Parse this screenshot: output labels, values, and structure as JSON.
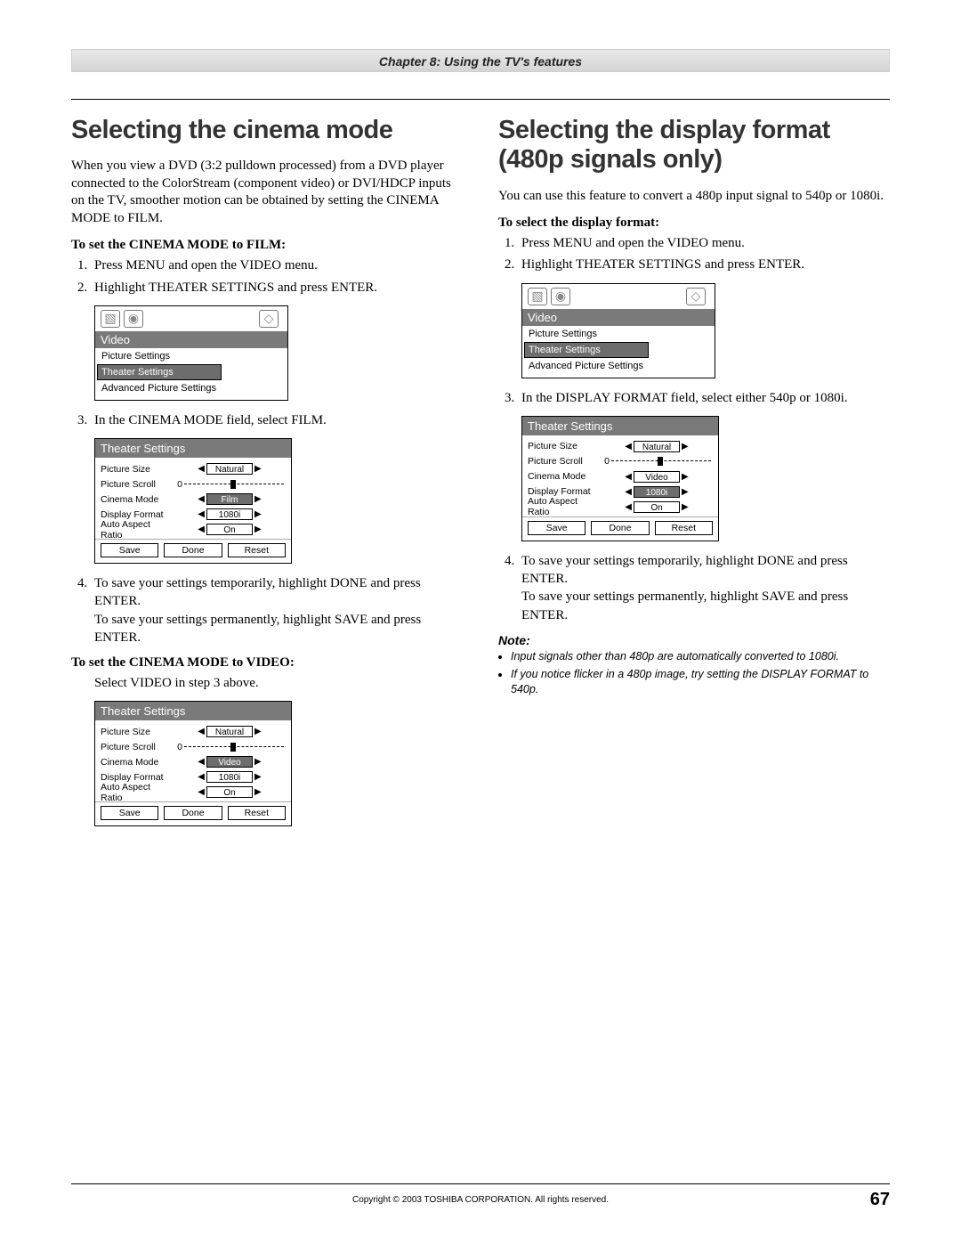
{
  "chapter_bar": "Chapter 8: Using the TV's features",
  "left": {
    "title": "Selecting the cinema mode",
    "intro": "When you view a DVD (3:2 pulldown processed) from a DVD player connected to the ColorStream (component video) or DVI/HDCP inputs on the TV, smoother motion can be obtained by setting the CINEMA MODE to FILM.",
    "lead1": "To set the CINEMA MODE to FILM:",
    "step1": "Press MENU and open the VIDEO menu.",
    "step2": "Highlight THEATER SETTINGS and press ENTER.",
    "video_menu": {
      "title": "Video",
      "items": [
        "Picture Settings",
        "Theater Settings",
        "Advanced Picture Settings"
      ],
      "selected_index": 1
    },
    "step3": "In the CINEMA MODE field, select FILM.",
    "theater1": {
      "title": "Theater Settings",
      "rows": [
        {
          "label": "Picture Size",
          "type": "val",
          "value": "Natural",
          "sel": false
        },
        {
          "label": "Picture Scroll",
          "type": "slider",
          "zero": "0"
        },
        {
          "label": "Cinema Mode",
          "type": "val",
          "value": "Film",
          "sel": true
        },
        {
          "label": "Display Format",
          "type": "val",
          "value": "1080i",
          "sel": false
        },
        {
          "label": "Auto Aspect Ratio",
          "type": "val",
          "value": "On",
          "sel": false
        }
      ],
      "buttons": [
        "Save",
        "Done",
        "Reset"
      ]
    },
    "step4a": "To save your settings temporarily, highlight DONE and press ENTER.",
    "step4b": "To save your settings permanently, highlight SAVE and press ENTER.",
    "lead2": "To set the CINEMA MODE to VIDEO:",
    "lead2_body": "Select VIDEO in step 3 above.",
    "theater2": {
      "title": "Theater Settings",
      "rows": [
        {
          "label": "Picture Size",
          "type": "val",
          "value": "Natural",
          "sel": false
        },
        {
          "label": "Picture Scroll",
          "type": "slider",
          "zero": "0"
        },
        {
          "label": "Cinema Mode",
          "type": "val",
          "value": "Video",
          "sel": true
        },
        {
          "label": "Display Format",
          "type": "val",
          "value": "1080i",
          "sel": false
        },
        {
          "label": "Auto Aspect Ratio",
          "type": "val",
          "value": "On",
          "sel": false
        }
      ],
      "buttons": [
        "Save",
        "Done",
        "Reset"
      ]
    }
  },
  "right": {
    "title": "Selecting the display format (480p signals only)",
    "intro": "You can use this feature to convert a 480p input signal to 540p or 1080i.",
    "lead1": "To select the display format:",
    "step1": "Press MENU and open the VIDEO menu.",
    "step2": "Highlight THEATER SETTINGS and press ENTER.",
    "video_menu": {
      "title": "Video",
      "items": [
        "Picture Settings",
        "Theater Settings",
        "Advanced Picture Settings"
      ],
      "selected_index": 1
    },
    "step3": "In the DISPLAY FORMAT field, select either 540p or 1080i.",
    "theater1": {
      "title": "Theater Settings",
      "rows": [
        {
          "label": "Picture Size",
          "type": "val",
          "value": "Natural",
          "sel": false
        },
        {
          "label": "Picture Scroll",
          "type": "slider",
          "zero": "0"
        },
        {
          "label": "Cinema Mode",
          "type": "val",
          "value": "Video",
          "sel": false
        },
        {
          "label": "Display Format",
          "type": "val",
          "value": "1080i",
          "sel": true
        },
        {
          "label": "Auto Aspect Ratio",
          "type": "val",
          "value": "On",
          "sel": false
        }
      ],
      "buttons": [
        "Save",
        "Done",
        "Reset"
      ]
    },
    "step4a": "To save your settings temporarily, highlight DONE and press ENTER.",
    "step4b": "To save your settings permanently, highlight SAVE and press ENTER.",
    "note_head": "Note:",
    "notes": [
      "Input signals other than 480p are automatically converted to 1080i.",
      "If you notice flicker in a 480p image, try setting the DISPLAY FORMAT to 540p."
    ]
  },
  "footer": {
    "copyright": "Copyright © 2003 TOSHIBA CORPORATION. All rights reserved.",
    "page": "67"
  }
}
